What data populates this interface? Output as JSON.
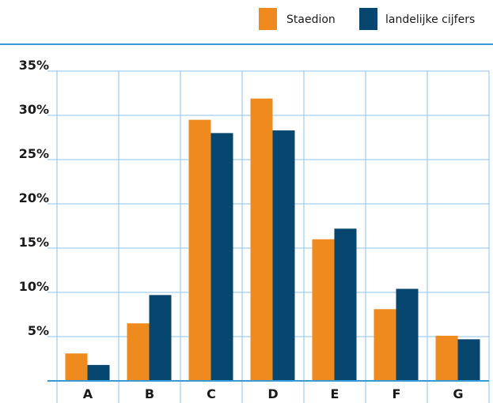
{
  "chart_data": {
    "type": "bar",
    "categories": [
      "A",
      "B",
      "C",
      "D",
      "E",
      "F",
      "G"
    ],
    "series": [
      {
        "name": "Staedion",
        "values": [
          3.1,
          6.5,
          29.5,
          31.9,
          16.0,
          8.1,
          5.1
        ]
      },
      {
        "name": "landelijke cijfers",
        "values": [
          1.8,
          9.7,
          28.0,
          28.3,
          17.2,
          10.4,
          4.7
        ]
      }
    ],
    "yticks": [
      "5%",
      "10%",
      "15%",
      "20%",
      "25%",
      "30%",
      "35%"
    ],
    "ylim": [
      0,
      35
    ],
    "grid": true,
    "legend_position": "top-right"
  },
  "colors": {
    "series": [
      "#ee8a1e",
      "#07466e"
    ],
    "grid": "#8fc3e9",
    "axis": "#3a9ad6"
  }
}
